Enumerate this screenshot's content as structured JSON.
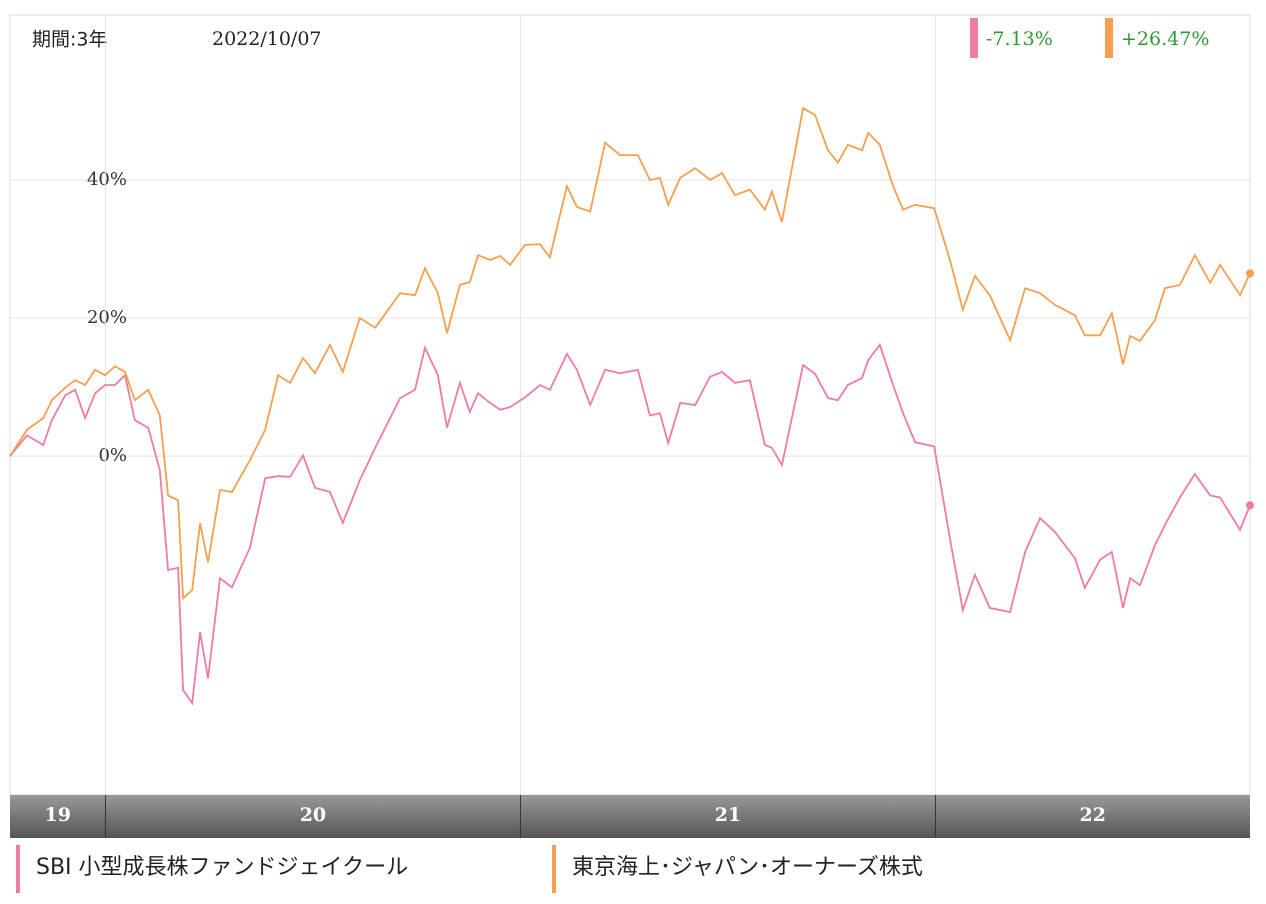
{
  "chart_data": {
    "type": "line",
    "period": "期間:3年",
    "date": "2022/10/07",
    "x": [
      19.77,
      19.811,
      19.85,
      19.871,
      19.903,
      19.927,
      19.951,
      19.975,
      19.999,
      20.023,
      20.047,
      20.071,
      20.103,
      20.131,
      20.151,
      20.175,
      20.187,
      20.209,
      20.228,
      20.247,
      20.276,
      20.305,
      20.348,
      20.385,
      20.416,
      20.445,
      20.476,
      20.505,
      20.541,
      20.572,
      20.613,
      20.65,
      20.71,
      20.746,
      20.77,
      20.801,
      20.823,
      20.854,
      20.878,
      20.898,
      20.927,
      20.951,
      20.975,
      21.011,
      21.047,
      21.071,
      21.112,
      21.136,
      21.168,
      21.204,
      21.24,
      21.283,
      21.312,
      21.336,
      21.356,
      21.385,
      21.421,
      21.457,
      21.486,
      21.517,
      21.553,
      21.589,
      21.606,
      21.63,
      21.681,
      21.71,
      21.741,
      21.765,
      21.789,
      21.823,
      21.838,
      21.866,
      21.898,
      21.922,
      21.951,
      21.997,
      22.035,
      22.066,
      22.095,
      22.131,
      22.18,
      22.216,
      22.252,
      22.288,
      22.336,
      22.36,
      22.397,
      22.425,
      22.452,
      22.469,
      22.493,
      22.529,
      22.553,
      22.589,
      22.625,
      22.662,
      22.686,
      22.734,
      22.758
    ],
    "series": [
      {
        "name": "SBI 小型成長株ファンドジェイクール",
        "color": "#f07ca0",
        "end_label": "-7.13%",
        "values": [
          0,
          3,
          1.6,
          5.2,
          8.8,
          9.6,
          5.5,
          9.1,
          10.3,
          10.3,
          11.7,
          5.2,
          4.1,
          -2,
          -16.5,
          -16.2,
          -33.9,
          -35.8,
          -25.5,
          -32.2,
          -17.7,
          -19,
          -13.3,
          -3.2,
          -2.9,
          -3,
          0.1,
          -4.6,
          -5.2,
          -9.7,
          -3.5,
          1.2,
          8.4,
          9.6,
          15.7,
          11.7,
          4.1,
          10.6,
          6.4,
          9.1,
          7.7,
          6.7,
          7.1,
          8.5,
          10.3,
          9.6,
          14.8,
          12.5,
          7.4,
          12.5,
          12,
          12.5,
          5.9,
          6.2,
          1.9,
          7.7,
          7.4,
          11.5,
          12.2,
          10.6,
          11,
          1.6,
          1.2,
          -1.3,
          13.2,
          11.9,
          8.4,
          8.1,
          10.3,
          11.3,
          13.9,
          16.1,
          10.3,
          6.2,
          2,
          1.4,
          -12,
          -22.3,
          -17.2,
          -22,
          -22.6,
          -13.9,
          -9,
          -11,
          -14.8,
          -19.1,
          -15,
          -13.9,
          -22,
          -17.7,
          -18.7,
          -12.9,
          -10,
          -6,
          -2.6,
          -5.7,
          -6,
          -10.7,
          -7.13
        ]
      },
      {
        "name": "東京海上･ジャパン･オーナーズ株式",
        "color": "#f5a050",
        "end_label": "+26.47%",
        "values": [
          0,
          3.8,
          5.5,
          8.1,
          9.9,
          11,
          10.3,
          12.5,
          11.7,
          13,
          12.2,
          8.1,
          9.6,
          5.9,
          -5.7,
          -6.4,
          -20.6,
          -19.4,
          -9.7,
          -15.4,
          -4.9,
          -5.2,
          -0.6,
          3.8,
          11.7,
          10.6,
          14.2,
          12,
          16.1,
          12.2,
          20,
          18.6,
          23.6,
          23.3,
          27.2,
          23.6,
          17.8,
          24.8,
          25.2,
          29.1,
          28.4,
          29,
          27.7,
          30.6,
          30.7,
          28.8,
          39.1,
          36.1,
          35.4,
          45.4,
          43.6,
          43.6,
          40,
          40.3,
          36.4,
          40.3,
          41.7,
          40,
          41,
          37.8,
          38.6,
          35.7,
          38.3,
          33.9,
          50.4,
          49.4,
          44.3,
          42.5,
          45.1,
          44.3,
          46.8,
          45.1,
          39.1,
          35.7,
          36.4,
          35.9,
          28.4,
          21.2,
          26.1,
          23.3,
          16.8,
          24.3,
          23.6,
          21.9,
          20.4,
          17.5,
          17.5,
          20.7,
          13.3,
          17.4,
          16.7,
          19.7,
          24.3,
          24.8,
          29.1,
          25.1,
          27.7,
          23.3,
          26.47
        ]
      }
    ],
    "xlim": [
      19.77,
      22.758
    ],
    "xticks": [
      20,
      21,
      22
    ],
    "year_bands": [
      "19",
      "20",
      "21",
      "22"
    ],
    "ylim": [
      -49.1,
      63.9
    ],
    "yticks": [
      {
        "value": 0,
        "label": "0%"
      },
      {
        "value": 20,
        "label": "20%"
      },
      {
        "value": 40,
        "label": "40%"
      }
    ],
    "grid": true
  }
}
